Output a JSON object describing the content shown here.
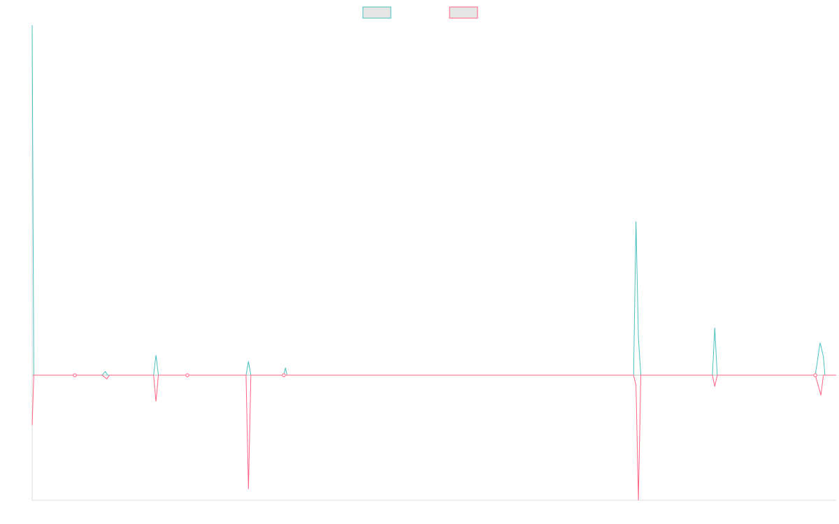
{
  "chart_data": {
    "type": "line",
    "title": "",
    "xlabel": "",
    "ylabel": "",
    "grid": false,
    "legend_position": "top-center",
    "x_range": [
      0,
      100
    ],
    "ylim": [
      -100,
      280
    ],
    "series": [
      {
        "color": "#4bc0c0",
        "fill_color": "#e6e6e6",
        "points": [
          [
            0,
            280
          ],
          [
            0.2,
            0
          ],
          [
            5.3,
            0
          ],
          [
            8.7,
            0
          ],
          [
            9.1,
            3
          ],
          [
            9.4,
            0
          ],
          [
            9.7,
            0
          ],
          [
            15.1,
            0
          ],
          [
            15.4,
            16
          ],
          [
            15.7,
            0
          ],
          [
            19.3,
            0
          ],
          [
            26.6,
            0
          ],
          [
            26.9,
            11
          ],
          [
            27.2,
            0
          ],
          [
            31.3,
            0
          ],
          [
            31.5,
            6
          ],
          [
            31.7,
            0
          ],
          [
            74.8,
            0
          ],
          [
            75.1,
            123
          ],
          [
            75.4,
            30
          ],
          [
            75.7,
            0
          ],
          [
            84.6,
            0
          ],
          [
            84.9,
            38
          ],
          [
            85.2,
            0
          ],
          [
            97.4,
            0
          ],
          [
            98.0,
            26
          ],
          [
            98.4,
            15
          ],
          [
            98.6,
            0
          ],
          [
            100,
            0
          ]
        ]
      },
      {
        "color": "#ff6384",
        "fill_color": "#e6e6e6",
        "points": [
          [
            0,
            -40
          ],
          [
            0.2,
            0
          ],
          [
            5.3,
            0
          ],
          [
            8.7,
            0
          ],
          [
            9.3,
            -3
          ],
          [
            9.6,
            0
          ],
          [
            15.1,
            0
          ],
          [
            15.4,
            -21
          ],
          [
            15.7,
            0
          ],
          [
            19.3,
            0
          ],
          [
            26.6,
            0
          ],
          [
            26.9,
            -91
          ],
          [
            27.2,
            0
          ],
          [
            31.3,
            0
          ],
          [
            74.8,
            0
          ],
          [
            75.1,
            -8
          ],
          [
            75.4,
            -100
          ],
          [
            75.7,
            0
          ],
          [
            84.6,
            0
          ],
          [
            84.9,
            -9
          ],
          [
            85.2,
            0
          ],
          [
            97.4,
            0
          ],
          [
            98.1,
            -16
          ],
          [
            98.4,
            0
          ],
          [
            100,
            0
          ]
        ]
      }
    ],
    "markers": [
      {
        "series": 1,
        "x": 5.3,
        "y": 0
      },
      {
        "series": 1,
        "x": 19.3,
        "y": 0
      },
      {
        "series": 1,
        "x": 31.3,
        "y": 0
      },
      {
        "series": 1,
        "x": 97.4,
        "y": 0
      }
    ]
  }
}
